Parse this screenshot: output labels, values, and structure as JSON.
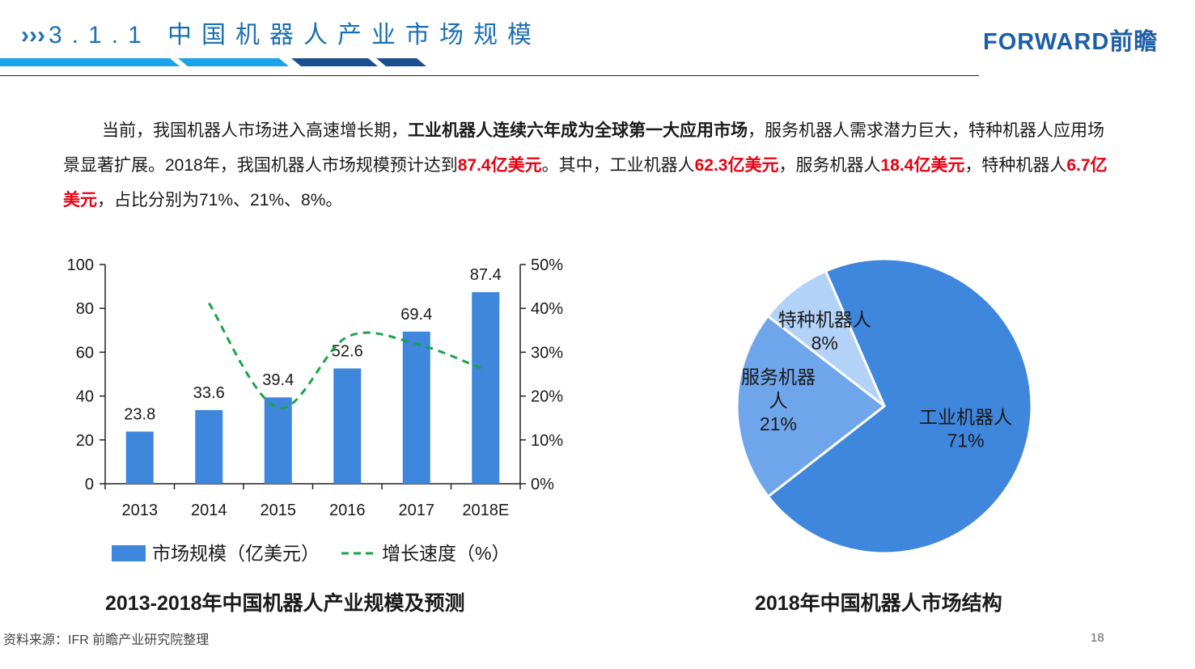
{
  "header": {
    "arrows": "›››",
    "title": "3.1.1 中国机器人产业市场规模",
    "logo": "FORWARD前瞻",
    "stripe_colors": [
      "#1aa3e8",
      "#1aa3e8",
      "#1b4f8f",
      "#1b4f8f"
    ]
  },
  "paragraph": {
    "s1": "当前，我国机器人市场进入高速增长期，",
    "s2": "工业机器人连续六年成为全球第一大应用市场",
    "s3": "，服务机器人需求潜力巨大，特种机器人应用场景显著扩展。2018年，我国机器人市场规模预计达到",
    "s4": "87.4亿美元",
    "s5": "。其中，工业机器人",
    "s6": "62.3亿美元",
    "s7": "，服务机器人",
    "s8": "18.4亿美元",
    "s9": "，特种机器人",
    "s10": "6.7亿美元",
    "s11": "，占比分别为71%、21%、8%。"
  },
  "chart_data": [
    {
      "type": "bar",
      "title": "2013-2018年中国机器人产业规模及预测",
      "categories": [
        "2013",
        "2014",
        "2015",
        "2016",
        "2017",
        "2018E"
      ],
      "series": [
        {
          "name": "市场规模（亿美元）",
          "values": [
            23.8,
            33.6,
            39.4,
            52.6,
            69.4,
            87.4
          ],
          "axis": "left",
          "color": "#3f86dd"
        },
        {
          "name": "增长速度（%）",
          "values": [
            null,
            41.2,
            17.3,
            33.5,
            31.9,
            25.9
          ],
          "axis": "right",
          "style": "dashed-line",
          "color": "#1aa34a"
        }
      ],
      "ylim": [
        0,
        100
      ],
      "yticks": [
        "0",
        "20",
        "40",
        "60",
        "80",
        "100"
      ],
      "y2lim": [
        0,
        50
      ],
      "y2ticks": [
        "0%",
        "10%",
        "20%",
        "30%",
        "40%",
        "50%"
      ],
      "grid": false,
      "legend": "bottom"
    },
    {
      "type": "pie",
      "title": "2018年中国机器人市场结构",
      "slices": [
        {
          "label": "工业机器人",
          "value": 71,
          "display": "71%",
          "color": "#3f86dd"
        },
        {
          "label": "服务机器人",
          "value": 21,
          "display": "21%",
          "color": "#6fa5ea"
        },
        {
          "label": "特种机器人",
          "value": 8,
          "display": "8%",
          "color": "#b3d2f8"
        }
      ]
    }
  ],
  "footer": {
    "source": "资料来源：IFR 前瞻产业研究院整理",
    "page": "18"
  }
}
